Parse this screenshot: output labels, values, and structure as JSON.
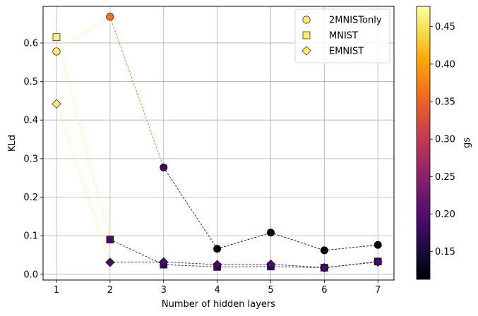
{
  "chart_data": {
    "type": "scatter",
    "xlabel": "Number of hidden layers",
    "ylabel": "KLd",
    "xlim": [
      0.75,
      7.3
    ],
    "ylim": [
      -0.015,
      0.695
    ],
    "xticks": [
      1,
      2,
      3,
      4,
      5,
      6,
      7
    ],
    "yticks": [
      0.0,
      0.1,
      0.2,
      0.3,
      0.4,
      0.5,
      0.6
    ],
    "grid": true,
    "legend_position": "top-right",
    "colorbar": {
      "label": "gs",
      "range": [
        0.113,
        0.477
      ],
      "ticks": [
        0.15,
        0.2,
        0.25,
        0.3,
        0.35,
        0.4,
        0.45
      ],
      "colormap": "inferno"
    },
    "series": [
      {
        "name": "2MNISTonly",
        "marker": "circle",
        "x": [
          1,
          2,
          3,
          4,
          5,
          6,
          7
        ],
        "y": [
          0.578,
          0.668,
          0.277,
          0.066,
          0.108,
          0.062,
          0.076
        ],
        "gs": [
          0.46,
          0.36,
          0.18,
          0.12,
          0.12,
          0.12,
          0.12
        ]
      },
      {
        "name": "MNIST",
        "marker": "square",
        "x": [
          1,
          2,
          3,
          4,
          5,
          6,
          7
        ],
        "y": [
          0.615,
          0.09,
          0.025,
          0.019,
          0.02,
          0.017,
          0.033
        ],
        "gs": [
          0.46,
          0.19,
          0.18,
          0.18,
          0.18,
          0.18,
          0.18
        ]
      },
      {
        "name": "EMNIST",
        "marker": "diamond",
        "x": [
          1,
          2,
          3,
          4,
          5,
          6,
          7
        ],
        "y": [
          0.442,
          0.031,
          0.032,
          0.025,
          0.026,
          0.017,
          0.032
        ],
        "gs": [
          0.46,
          0.19,
          0.19,
          0.19,
          0.19,
          0.19,
          0.19
        ]
      }
    ]
  }
}
